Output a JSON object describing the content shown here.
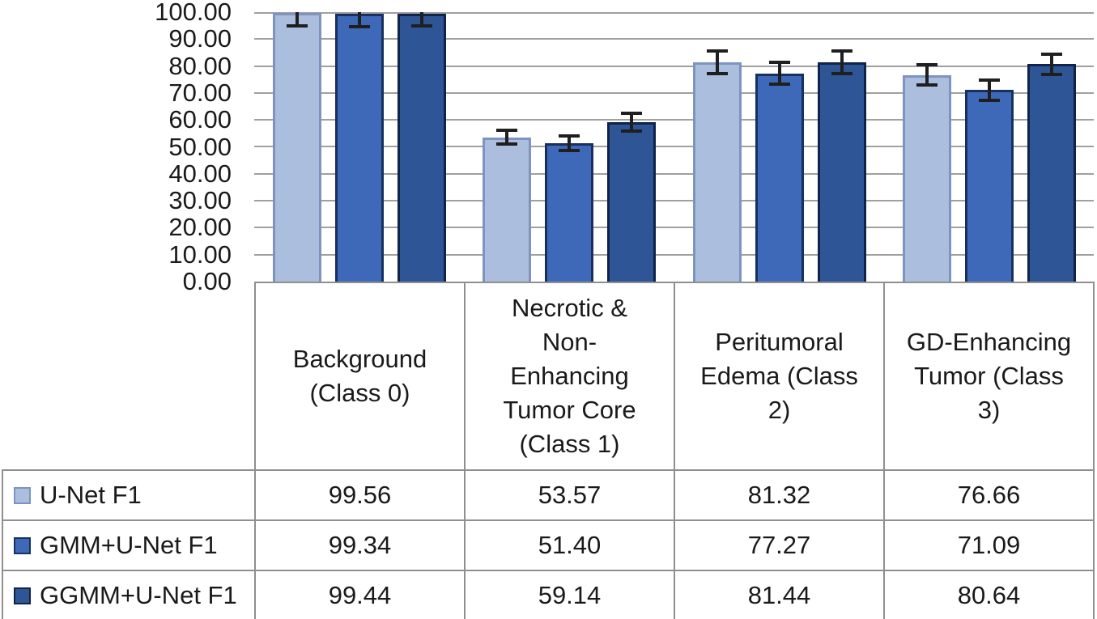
{
  "chart_data": {
    "type": "bar",
    "title": "",
    "xlabel": "",
    "ylabel": "",
    "categories": [
      "Background (Class 0)",
      "Necrotic & Non-Enhancing Tumor Core (Class 1)",
      "Peritumoral Edema (Class 2)",
      "GD-Enhancing Tumor (Class 3)"
    ],
    "series": [
      {
        "name": "U-Net F1",
        "values": [
          99.56,
          53.57,
          81.32,
          76.66
        ],
        "errors": [
          4.8,
          2.6,
          4.2,
          3.8
        ],
        "fill": "#acbede",
        "stroke": "#7d93c1"
      },
      {
        "name": "GMM+U-Net F1",
        "values": [
          99.34,
          51.4,
          77.27,
          71.09
        ],
        "errors": [
          4.8,
          2.6,
          4.0,
          3.8
        ],
        "fill": "#3e69b9",
        "stroke": "#17305e"
      },
      {
        "name": "GGMM+U-Net F1",
        "values": [
          99.44,
          59.14,
          81.44,
          80.64
        ],
        "errors": [
          4.6,
          3.4,
          4.2,
          3.7
        ],
        "fill": "#2e5596",
        "stroke": "#11234a"
      }
    ],
    "ylim": [
      0,
      100
    ],
    "ytick_step": 10,
    "yticks": [
      0,
      10,
      20,
      30,
      40,
      50,
      60,
      70,
      80,
      90,
      100
    ],
    "ytick_labels": [
      "0.00",
      "10.00",
      "20.00",
      "30.00",
      "40.00",
      "50.00",
      "60.00",
      "70.00",
      "80.00",
      "90.00",
      "100.00"
    ],
    "grid": true,
    "error_bars": true,
    "legend_position": "table-left",
    "colors": {
      "gridline": "#a0a0a0",
      "table_border": "#8f8f8f",
      "error_bar": "#1f1f1f",
      "text": "#1a1a1a"
    }
  },
  "table": {
    "row_values": [
      [
        "99.56",
        "53.57",
        "81.32",
        "76.66"
      ],
      [
        "99.34",
        "51.40",
        "77.27",
        "71.09"
      ],
      [
        "99.44",
        "59.14",
        "81.44",
        "80.64"
      ]
    ]
  }
}
